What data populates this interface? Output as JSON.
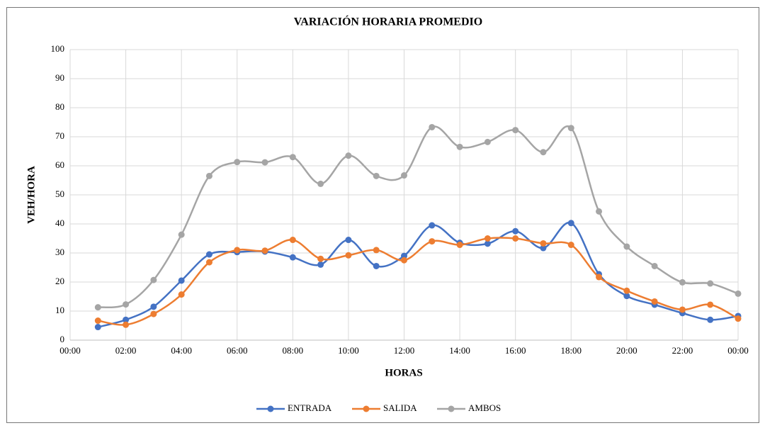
{
  "chart_data": {
    "type": "line",
    "title": "VARIACIÓN HORARIA PROMEDIO",
    "xlabel": "HORAS",
    "ylabel": "VEH/HORA",
    "x": [
      1,
      2,
      3,
      4,
      5,
      6,
      7,
      8,
      9,
      10,
      11,
      12,
      13,
      14,
      15,
      16,
      17,
      18,
      19,
      20,
      21,
      22,
      23,
      24
    ],
    "xlim": [
      0,
      24
    ],
    "xticks": [
      {
        "value": 0,
        "label": "00:00"
      },
      {
        "value": 2,
        "label": "02:00"
      },
      {
        "value": 4,
        "label": "04:00"
      },
      {
        "value": 6,
        "label": "06:00"
      },
      {
        "value": 8,
        "label": "08:00"
      },
      {
        "value": 10,
        "label": "10:00"
      },
      {
        "value": 12,
        "label": "12:00"
      },
      {
        "value": 14,
        "label": "14:00"
      },
      {
        "value": 16,
        "label": "16:00"
      },
      {
        "value": 18,
        "label": "18:00"
      },
      {
        "value": 20,
        "label": "20:00"
      },
      {
        "value": 22,
        "label": "22:00"
      },
      {
        "value": 24,
        "label": "00:00"
      }
    ],
    "ylim": [
      0,
      100
    ],
    "yticks": [
      0,
      10,
      20,
      30,
      40,
      50,
      60,
      70,
      80,
      90,
      100
    ],
    "grid": true,
    "smooth": true,
    "legend": "bottom",
    "series": [
      {
        "name": "ENTRADA",
        "color": "#4472c4",
        "values": [
          4.5,
          7,
          11.5,
          20.5,
          29.5,
          30.3,
          30.5,
          28.5,
          26,
          34.5,
          25.5,
          29,
          39.5,
          33.5,
          33.2,
          37.5,
          31.7,
          40.3,
          22.7,
          15.2,
          12.2,
          9.3,
          7,
          8.3
        ]
      },
      {
        "name": "SALIDA",
        "color": "#ed7d31",
        "values": [
          6.7,
          5.3,
          9,
          15.7,
          26.8,
          31,
          30.8,
          34.5,
          28,
          29.2,
          31,
          27.5,
          34,
          32.8,
          35,
          35,
          33.3,
          32.8,
          21.7,
          17,
          13.3,
          10.5,
          12.2,
          7.4
        ]
      },
      {
        "name": "AMBOS",
        "color": "#a5a5a5",
        "values": [
          11.3,
          12.3,
          20.7,
          36.3,
          56.5,
          61.3,
          61.2,
          63,
          53.8,
          63.5,
          56.5,
          56.7,
          73.3,
          66.5,
          68.2,
          72.3,
          64.7,
          73,
          44.3,
          32.2,
          25.5,
          19.9,
          19.5,
          16
        ]
      }
    ]
  }
}
